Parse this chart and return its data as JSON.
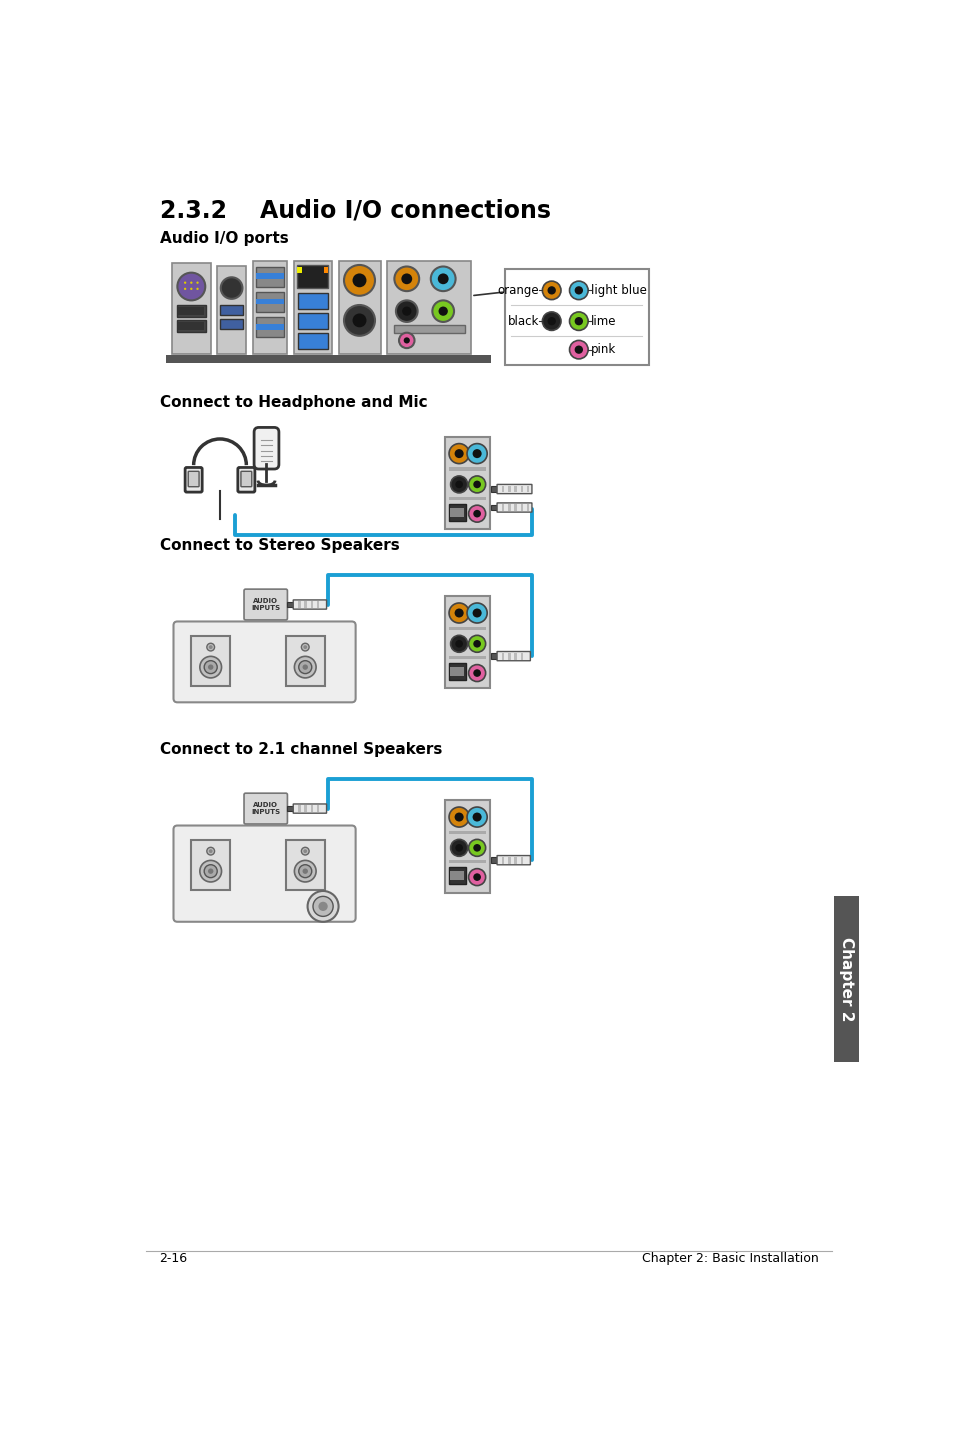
{
  "title": "2.3.2    Audio I/O connections",
  "subtitle_ports": "Audio I/O ports",
  "subtitle_headphone": "Connect to Headphone and Mic",
  "subtitle_stereo": "Connect to Stereo Speakers",
  "subtitle_21ch": "Connect to 2.1 channel Speakers",
  "footer_left": "2-16",
  "footer_right": "Chapter 2: Basic Installation",
  "bg_color": "#ffffff",
  "text_color": "#000000",
  "chapter_tab_text": "Chapter 2",
  "chapter_tab_bg": "#555555",
  "chapter_tab_text_color": "#ffffff",
  "blue_line_color": "#1b9fd4",
  "port_colors": {
    "orange": "#d4830a",
    "light_blue": "#4ab8d8",
    "black": "#222222",
    "lime": "#78c820",
    "pink": "#e060a0",
    "green": "#78c820"
  },
  "label_orange": "orange",
  "label_light_blue": "light blue",
  "label_black": "black",
  "label_lime": "lime",
  "label_pink": "pink"
}
